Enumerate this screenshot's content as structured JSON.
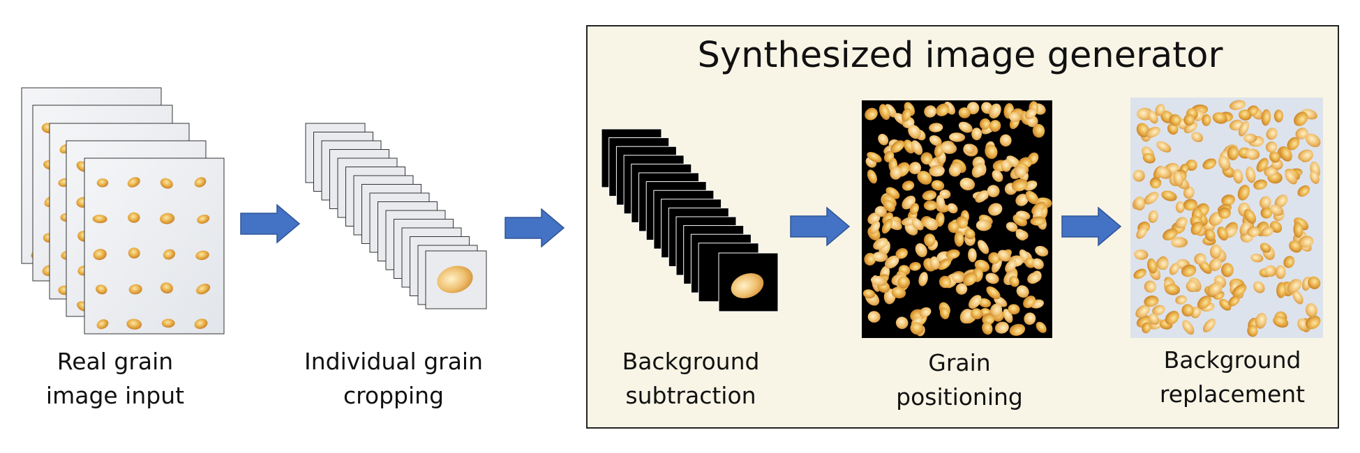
{
  "generator_box": {
    "title": "Synthesized image generator",
    "background_color": "#f8f5e6"
  },
  "steps": [
    {
      "line1": "Real grain",
      "line2": "image input"
    },
    {
      "line1": "Individual grain",
      "line2": "cropping"
    },
    {
      "line1": "Background",
      "line2": "subtraction"
    },
    {
      "line1": "Grain",
      "line2": "positioning"
    },
    {
      "line1": "Background",
      "line2": "replacement"
    }
  ],
  "colors": {
    "arrow": "#4472c4",
    "grain": "#e3a83b",
    "black_background": "#000000",
    "replaced_background": "#dde3ec"
  },
  "icons": [
    "right-arrow-icon",
    "image-stack-icon",
    "corn-kernel-icon"
  ]
}
